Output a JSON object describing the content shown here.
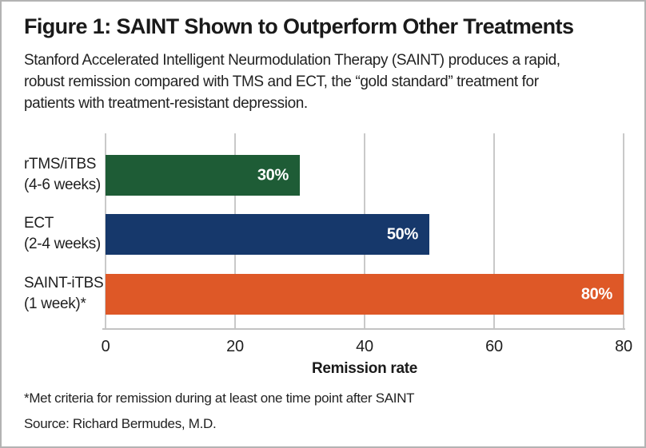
{
  "figure": {
    "title": "Figure 1: SAINT Shown to Outperform Other Treatments",
    "subtitle_lines": [
      "Stanford Accelerated Intelligent Neurmodulation Therapy (SAINT) produces a rapid,",
      "robust remission compared with TMS and ECT, the “gold standard” treatment for",
      "patients with treatment-resistant depression."
    ],
    "footnote": "*Met criteria for remission during at least one time point after SAINT",
    "source": "Source: Richard Bermudes, M.D."
  },
  "chart": {
    "xlabel": "Remission rate",
    "xmax": 80,
    "xticks": [
      "0",
      "20",
      "40",
      "60",
      "80"
    ],
    "gridline_color": "#C9C9C9",
    "bars": [
      {
        "name": "rTMS/iTBS",
        "duration": "(4-6 weeks)",
        "value": 30,
        "value_label": "30%",
        "color": "#1E5C36"
      },
      {
        "name": "ECT",
        "duration": "(2-4 weeks)",
        "value": 50,
        "value_label": "50%",
        "color": "#16386B"
      },
      {
        "name": "SAINT-iTBS",
        "duration": "(1 week)*",
        "value": 80,
        "value_label": "80%",
        "color": "#DE5827"
      }
    ]
  },
  "chart_data": {
    "type": "bar",
    "orientation": "horizontal",
    "title": "Figure 1: SAINT Shown to Outperform Other Treatments",
    "categories": [
      "rTMS/iTBS (4-6 weeks)",
      "ECT (2-4 weeks)",
      "SAINT-iTBS (1 week)*"
    ],
    "values": [
      30,
      50,
      80
    ],
    "data_labels": [
      "30%",
      "50%",
      "80%"
    ],
    "bar_colors": [
      "#1E5C36",
      "#16386B",
      "#DE5827"
    ],
    "xlabel": "Remission rate",
    "xlim": [
      0,
      80
    ],
    "xticks": [
      0,
      20,
      40,
      60,
      80
    ],
    "grid": true,
    "legend": false
  }
}
